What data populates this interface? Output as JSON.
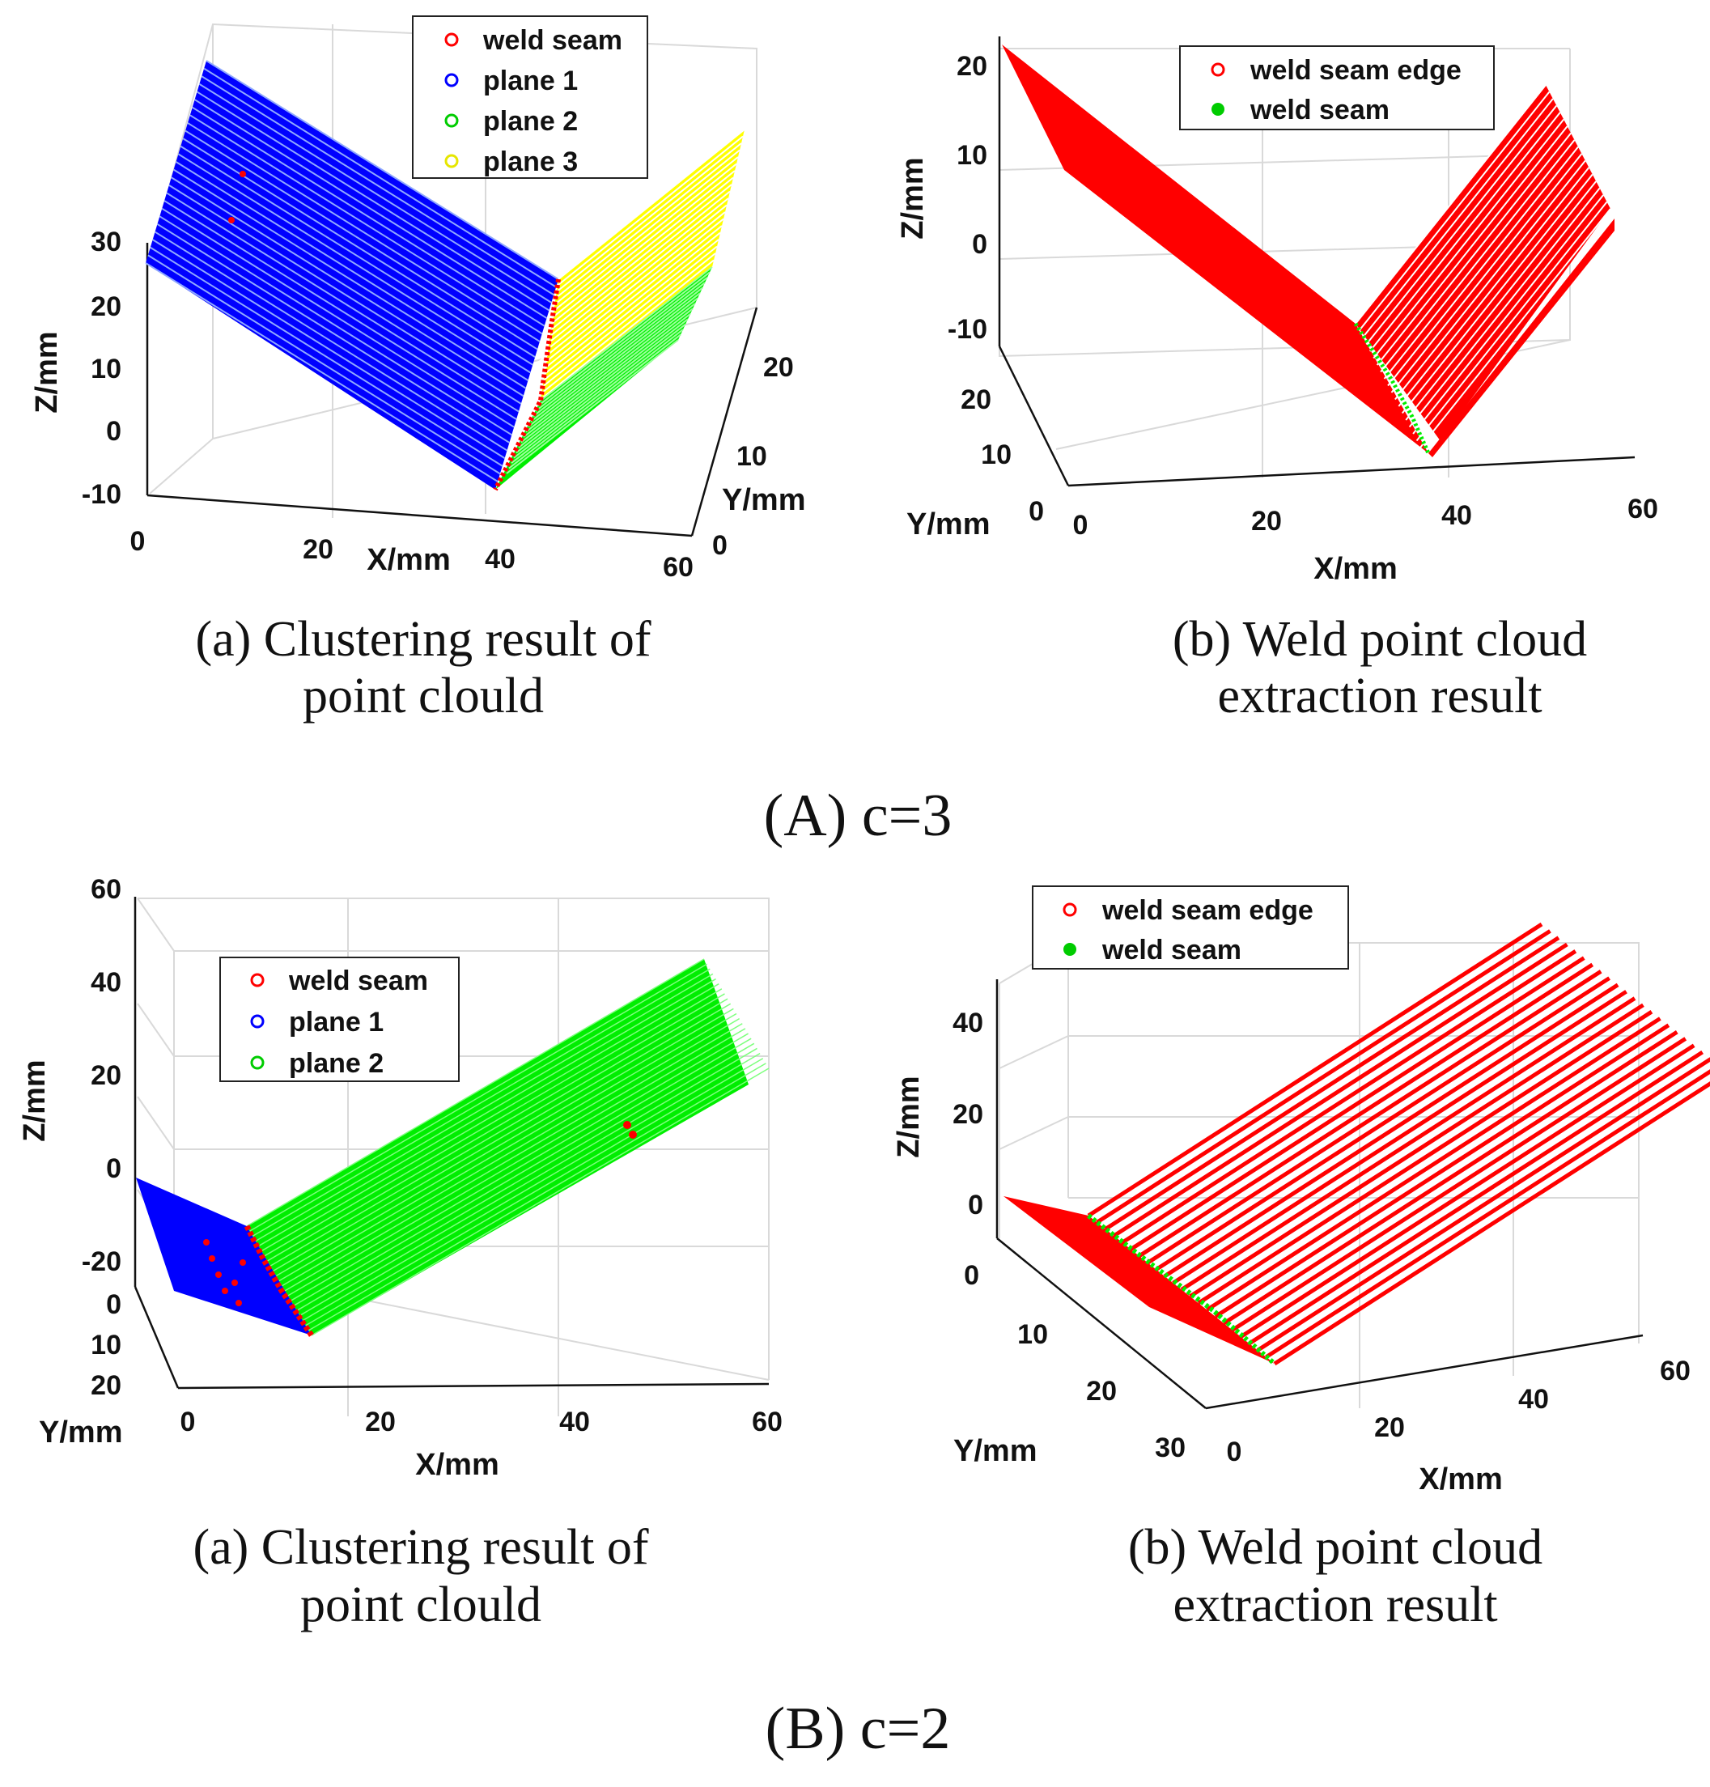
{
  "section_A": {
    "label": "(A) c=3"
  },
  "section_B": {
    "label": "(B) c=2"
  },
  "colors": {
    "red": "#ff0000",
    "blue": "#0000ff",
    "green": "#00ee00",
    "yellow": "#ffff00"
  },
  "chart_data": [
    {
      "id": "A-a",
      "type": "scatter",
      "title": "",
      "caption": [
        "(a) Clustering result of",
        "point clould"
      ],
      "xlabel": "X/mm",
      "ylabel": "Y/mm",
      "zlabel": "Z/mm",
      "xticks": [
        "0",
        "20",
        "40",
        "60"
      ],
      "yticks": [
        "0",
        "10",
        "20"
      ],
      "zticks": [
        "-10",
        "0",
        "10",
        "20",
        "30"
      ],
      "legend": [
        "weld seam",
        "plane 1",
        "plane 2",
        "plane 3"
      ],
      "legend_markers": [
        "hollow",
        "hollow",
        "hollow",
        "hollow"
      ],
      "legend_position": "top-center",
      "series": [
        {
          "name": "weld seam",
          "color": "red",
          "description": "points along the plane intersection"
        },
        {
          "name": "plane 1",
          "color": "blue",
          "x_range": [
            0,
            40
          ],
          "z_range": [
            -10,
            35
          ]
        },
        {
          "name": "plane 2",
          "color": "green",
          "x_range": [
            40,
            60
          ],
          "z_range": [
            -10,
            15
          ]
        },
        {
          "name": "plane 3",
          "color": "yellow",
          "x_range": [
            40,
            60
          ],
          "z_range": [
            5,
            35
          ]
        }
      ]
    },
    {
      "id": "A-b",
      "type": "scatter",
      "title": "",
      "caption": [
        "(b) Weld point cloud",
        "extraction result"
      ],
      "xlabel": "X/mm",
      "ylabel": "Y/mm",
      "zlabel": "Z/mm",
      "xticks": [
        "0",
        "20",
        "40",
        "60"
      ],
      "yticks": [
        "0",
        "10",
        "20"
      ],
      "zticks": [
        "-10",
        "0",
        "10",
        "20"
      ],
      "legend": [
        "weld seam edge",
        "weld seam"
      ],
      "legend_markers": [
        "hollow",
        "filled"
      ],
      "legend_position": "top-center",
      "series": [
        {
          "name": "weld seam edge",
          "color": "red"
        },
        {
          "name": "weld seam",
          "color": "green"
        }
      ]
    },
    {
      "id": "B-a",
      "type": "scatter",
      "title": "",
      "caption": [
        "(a) Clustering result of",
        "point clould"
      ],
      "xlabel": "X/mm",
      "ylabel": "Y/mm",
      "zlabel": "Z/mm",
      "xticks": [
        "0",
        "20",
        "40",
        "60"
      ],
      "yticks": [
        "0",
        "10",
        "20"
      ],
      "zticks": [
        "-20",
        "0",
        "20",
        "40",
        "60"
      ],
      "legend": [
        "weld seam",
        "plane 1",
        "plane 2"
      ],
      "legend_markers": [
        "hollow",
        "hollow",
        "hollow"
      ],
      "legend_position": "top-left",
      "series": [
        {
          "name": "weld seam",
          "color": "red"
        },
        {
          "name": "plane 1",
          "color": "blue",
          "x_range": [
            0,
            12
          ]
        },
        {
          "name": "plane 2",
          "color": "green",
          "x_range": [
            12,
            60
          ]
        }
      ]
    },
    {
      "id": "B-b",
      "type": "scatter",
      "title": "",
      "caption": [
        "(b) Weld point cloud",
        "extraction result"
      ],
      "xlabel": "X/mm",
      "ylabel": "Y/mm",
      "zlabel": "Z/mm",
      "xticks": [
        "0",
        "20",
        "40",
        "60"
      ],
      "yticks": [
        "0",
        "10",
        "20",
        "30"
      ],
      "zticks": [
        "0",
        "20",
        "40"
      ],
      "legend": [
        "weld seam edge",
        "weld seam"
      ],
      "legend_markers": [
        "hollow",
        "filled"
      ],
      "legend_position": "top-center",
      "series": [
        {
          "name": "weld seam edge",
          "color": "red"
        },
        {
          "name": "weld seam",
          "color": "green"
        }
      ]
    }
  ]
}
